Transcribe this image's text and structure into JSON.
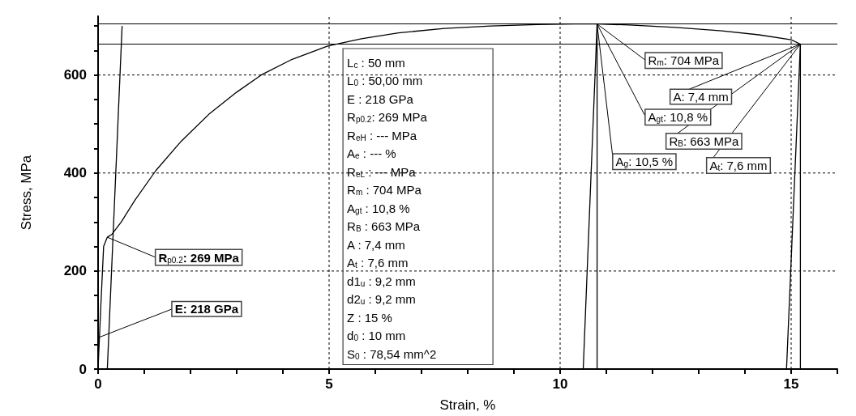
{
  "chart_data": {
    "type": "line",
    "xlabel": "Strain, %",
    "ylabel": "Stress, MPa",
    "xlim": [
      0,
      16
    ],
    "xticks": [
      0,
      {
        "value": 1,
        "label": null
      },
      {
        "value": 2,
        "label": null
      },
      {
        "value": 3,
        "label": null
      },
      {
        "value": 4,
        "label": null
      },
      5,
      {
        "value": 6,
        "label": null
      },
      {
        "value": 7,
        "label": null
      },
      {
        "value": 8,
        "label": null
      },
      {
        "value": 9,
        "label": null
      },
      10,
      {
        "value": 11,
        "label": null
      },
      {
        "value": 12,
        "label": null
      },
      {
        "value": 13,
        "label": null
      },
      {
        "value": 14,
        "label": null
      },
      15,
      {
        "value": 16,
        "label": null
      }
    ],
    "ylim": [
      0,
      720
    ],
    "yticks": [
      0,
      {
        "value": 50,
        "label": null
      },
      {
        "value": 100,
        "label": null
      },
      {
        "value": 150,
        "label": null
      },
      200,
      {
        "value": 250,
        "label": null
      },
      {
        "value": 300,
        "label": null
      },
      {
        "value": 350,
        "label": null
      },
      400,
      {
        "value": 450,
        "label": null
      },
      {
        "value": 500,
        "label": null
      },
      {
        "value": 550,
        "label": null
      },
      600,
      {
        "value": 650,
        "label": null
      },
      {
        "value": 700,
        "label": null
      }
    ],
    "grid": true,
    "marker": "none",
    "line_style": "solid",
    "series": [
      {
        "color": "#000000",
        "x": [
          0,
          0.06,
          0.12,
          0.17,
          0.2,
          0.3,
          0.5,
          0.8,
          1.25,
          1.8,
          2.4,
          3.0,
          3.53,
          4.2,
          4.97,
          5.7,
          6.5,
          7.5,
          8.5,
          9.5,
          10.3,
          10.8,
          11.5,
          12.5,
          13.5,
          14.3,
          15.0,
          15.2
        ],
        "values": [
          0,
          130,
          250,
          262,
          269,
          275,
          300,
          345,
          405,
          465,
          520,
          565,
          600,
          632,
          659,
          674,
          686,
          695,
          700,
          703,
          704,
          704,
          702,
          697,
          690,
          682,
          672,
          663
        ]
      },
      {
        "color": "#000000",
        "x": [
          0.2,
          0.52
        ],
        "values": [
          0,
          700
        ]
      },
      {
        "color": "#000000",
        "x": [
          10.5,
          10.8
        ],
        "values": [
          0,
          704
        ]
      },
      {
        "color": "#000000",
        "x": [
          10.8,
          10.8
        ],
        "values": [
          0,
          704
        ]
      },
      {
        "color": "#000000",
        "x": [
          14.9,
          15.2
        ],
        "values": [
          0,
          663
        ]
      },
      {
        "color": "#000000",
        "x": [
          15.2,
          15.2
        ],
        "values": [
          0,
          663
        ]
      }
    ],
    "ref_lines": [
      {
        "axis": "y",
        "value": 704,
        "color": "#000000",
        "line_style": "solid"
      },
      {
        "axis": "y",
        "value": 663,
        "color": "#000000",
        "line_style": "solid"
      }
    ],
    "annotations": [
      {
        "text": "R$_{p0.2}$: 269 MPa",
        "x": 0.2,
        "y": 269
      },
      {
        "text": "E: 218 GPa",
        "x": 0.03,
        "y": 65
      },
      {
        "text": "R$_{m}$: 704 MPa",
        "x": 10.8,
        "y": 704
      },
      {
        "text": "A: 7,4 mm",
        "x": 15.2,
        "y": 663
      },
      {
        "text": "A$_{gt}$: 10,8 %",
        "x": 10.8,
        "y": 704
      },
      {
        "text": "R$_{B}$: 663 MPa",
        "x": 15.2,
        "y": 663
      },
      {
        "text": "A$_{g}$: 10,5 %",
        "x": 10.8,
        "y": 704
      },
      {
        "text": "A$_{t}$: 7,6 mm",
        "x": 15.2,
        "y": 663
      },
      "L$_{c}$ : 50 mm",
      "L$_{0}$ : 50,00 mm",
      "E : 218 GPa",
      "R$_{p0.2}$: 269 MPa",
      "R$_{eH}$ : --- MPa",
      "A$_{e}$ : --- %",
      "R$_{eL}$ : --- MPa",
      "R$_{m}$ : 704 MPa",
      "A$_{gt}$ : 10,8 %",
      "R$_{B}$ : 663 MPa",
      "A : 7,4 mm",
      "A$_{t}$ : 7,6 mm",
      "d1$_{u}$ : 9,2 mm",
      "d2$_{u}$ : 9,2 mm",
      "Z : 15 %",
      "d$_{0}$ : 10 mm",
      "S$_{0}$ : 78,54 mm^2"
    ]
  }
}
